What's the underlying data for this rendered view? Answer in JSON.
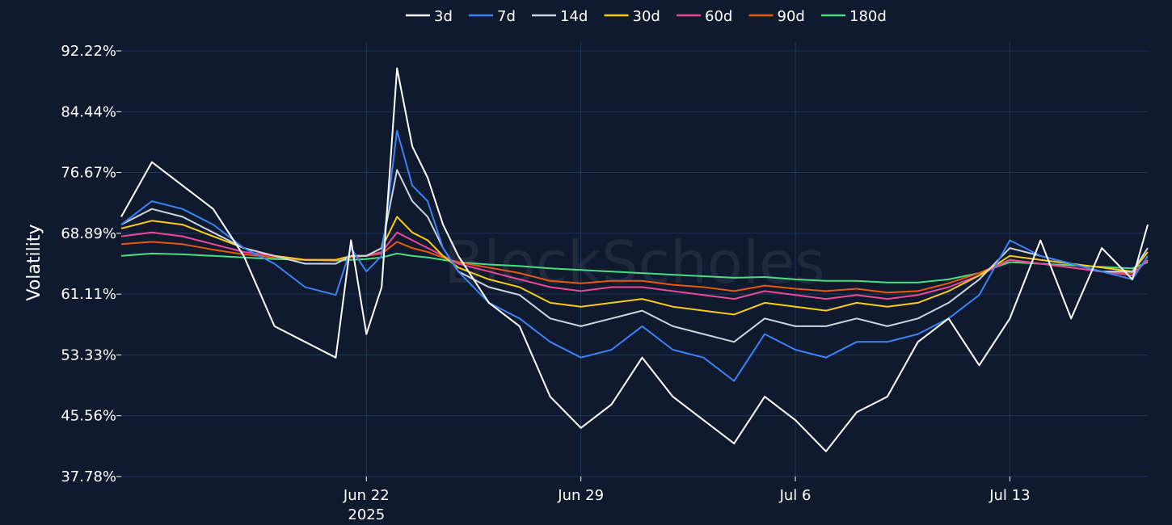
{
  "chart_data": {
    "type": "line",
    "ylabel": "Volatility",
    "watermark": "BlockScholes",
    "ylim": [
      37.78,
      92.22
    ],
    "yticks": [
      "92.22%",
      "84.44%",
      "76.67%",
      "68.89%",
      "61.11%",
      "53.33%",
      "45.56%",
      "37.78%"
    ],
    "ytick_values": [
      92.22,
      84.44,
      76.67,
      68.89,
      61.11,
      53.33,
      45.56,
      37.78
    ],
    "xlim": [
      "2025-06-14",
      "2025-07-17T12:00"
    ],
    "xticks": [
      {
        "date": "2025-06-22",
        "label": "Jun 22",
        "sublabel": "2025"
      },
      {
        "date": "2025-06-29",
        "label": "Jun 29",
        "sublabel": ""
      },
      {
        "date": "2025-07-06",
        "label": "Jul 6",
        "sublabel": ""
      },
      {
        "date": "2025-07-13",
        "label": "Jul 13",
        "sublabel": ""
      }
    ],
    "x": [
      "2025-06-14T00:00",
      "2025-06-15T00:00",
      "2025-06-16T00:00",
      "2025-06-17T00:00",
      "2025-06-18T00:00",
      "2025-06-19T00:00",
      "2025-06-20T00:00",
      "2025-06-21T00:00",
      "2025-06-21T12:00",
      "2025-06-22T00:00",
      "2025-06-22T12:00",
      "2025-06-23T00:00",
      "2025-06-23T12:00",
      "2025-06-24T00:00",
      "2025-06-24T12:00",
      "2025-06-25T00:00",
      "2025-06-26T00:00",
      "2025-06-27T00:00",
      "2025-06-28T00:00",
      "2025-06-29T00:00",
      "2025-06-30T00:00",
      "2025-07-01T00:00",
      "2025-07-02T00:00",
      "2025-07-03T00:00",
      "2025-07-04T00:00",
      "2025-07-05T00:00",
      "2025-07-06T00:00",
      "2025-07-07T00:00",
      "2025-07-08T00:00",
      "2025-07-09T00:00",
      "2025-07-10T00:00",
      "2025-07-11T00:00",
      "2025-07-12T00:00",
      "2025-07-13T00:00",
      "2025-07-14T00:00",
      "2025-07-15T00:00",
      "2025-07-16T00:00",
      "2025-07-17T00:00",
      "2025-07-17T12:00"
    ],
    "series": [
      {
        "name": "3d",
        "color": "#ffffff",
        "values": [
          71.0,
          78.0,
          75.0,
          72.0,
          66.0,
          57.0,
          55.0,
          53.0,
          68.0,
          56.0,
          62.0,
          90.0,
          80.0,
          76.0,
          70.0,
          66.0,
          60.0,
          57.0,
          48.0,
          44.0,
          47.0,
          53.0,
          48.0,
          45.0,
          42.0,
          48.0,
          45.0,
          41.0,
          46.0,
          48.0,
          55.0,
          58.0,
          52.0,
          58.0,
          68.0,
          58.0,
          67.0,
          63.0,
          70.0
        ]
      },
      {
        "name": "7d",
        "color": "#3b82f6",
        "values": [
          70.0,
          73.0,
          72.0,
          70.0,
          67.0,
          65.0,
          62.0,
          61.0,
          67.0,
          64.0,
          66.0,
          82.0,
          75.0,
          73.0,
          67.0,
          64.0,
          60.0,
          58.0,
          55.0,
          53.0,
          54.0,
          57.0,
          54.0,
          53.0,
          50.0,
          56.0,
          54.0,
          53.0,
          55.0,
          55.0,
          56.0,
          58.0,
          61.0,
          68.0,
          66.0,
          65.0,
          64.0,
          63.0,
          66.0
        ]
      },
      {
        "name": "14d",
        "color": "#cbd5e1",
        "values": [
          70.0,
          72.0,
          71.0,
          69.0,
          67.0,
          66.0,
          65.0,
          65.0,
          66.0,
          66.0,
          67.0,
          77.0,
          73.0,
          71.0,
          67.0,
          64.0,
          62.0,
          61.0,
          58.0,
          57.0,
          58.0,
          59.0,
          57.0,
          56.0,
          55.0,
          58.0,
          57.0,
          57.0,
          58.0,
          57.0,
          58.0,
          60.0,
          63.0,
          67.0,
          66.0,
          65.0,
          64.0,
          64.0,
          67.0
        ]
      },
      {
        "name": "30d",
        "color": "#facc15",
        "values": [
          69.5,
          70.5,
          70.0,
          68.5,
          67.0,
          66.0,
          65.5,
          65.5,
          66.0,
          66.0,
          67.0,
          71.0,
          69.0,
          68.0,
          66.0,
          64.5,
          63.0,
          62.0,
          60.0,
          59.5,
          60.0,
          60.5,
          59.5,
          59.0,
          58.5,
          60.0,
          59.5,
          59.0,
          60.0,
          59.5,
          60.0,
          61.5,
          63.5,
          66.0,
          65.5,
          65.0,
          64.5,
          64.0,
          66.5
        ]
      },
      {
        "name": "60d",
        "color": "#ec4899",
        "values": [
          68.5,
          69.0,
          68.5,
          67.5,
          66.5,
          66.0,
          65.5,
          65.5,
          66.0,
          66.0,
          66.5,
          69.0,
          68.0,
          67.0,
          66.0,
          65.0,
          64.0,
          63.0,
          62.0,
          61.5,
          62.0,
          62.0,
          61.5,
          61.0,
          60.5,
          61.5,
          61.0,
          60.5,
          61.0,
          60.5,
          61.0,
          62.0,
          63.5,
          65.5,
          65.0,
          64.5,
          64.0,
          63.5,
          65.5
        ]
      },
      {
        "name": "90d",
        "color": "#ea580c",
        "values": [
          67.5,
          67.8,
          67.5,
          66.8,
          66.2,
          65.8,
          65.5,
          65.5,
          65.8,
          66.0,
          66.3,
          67.8,
          67.0,
          66.5,
          65.8,
          65.2,
          64.5,
          63.8,
          62.8,
          62.5,
          62.8,
          62.8,
          62.3,
          62.0,
          61.5,
          62.2,
          61.8,
          61.5,
          61.8,
          61.3,
          61.5,
          62.5,
          63.8,
          65.5,
          65.0,
          64.5,
          64.0,
          63.8,
          65.5
        ]
      },
      {
        "name": "180d",
        "color": "#4ade80",
        "values": [
          66.0,
          66.3,
          66.2,
          66.0,
          65.8,
          65.6,
          65.5,
          65.4,
          65.5,
          65.6,
          65.8,
          66.3,
          66.0,
          65.8,
          65.5,
          65.2,
          64.9,
          64.7,
          64.4,
          64.2,
          64.0,
          63.8,
          63.6,
          63.4,
          63.2,
          63.3,
          63.0,
          62.8,
          62.8,
          62.6,
          62.6,
          63.0,
          63.8,
          65.2,
          65.0,
          64.8,
          64.6,
          64.4,
          65.2
        ]
      }
    ],
    "grid": true,
    "legend_position": "top-center"
  }
}
